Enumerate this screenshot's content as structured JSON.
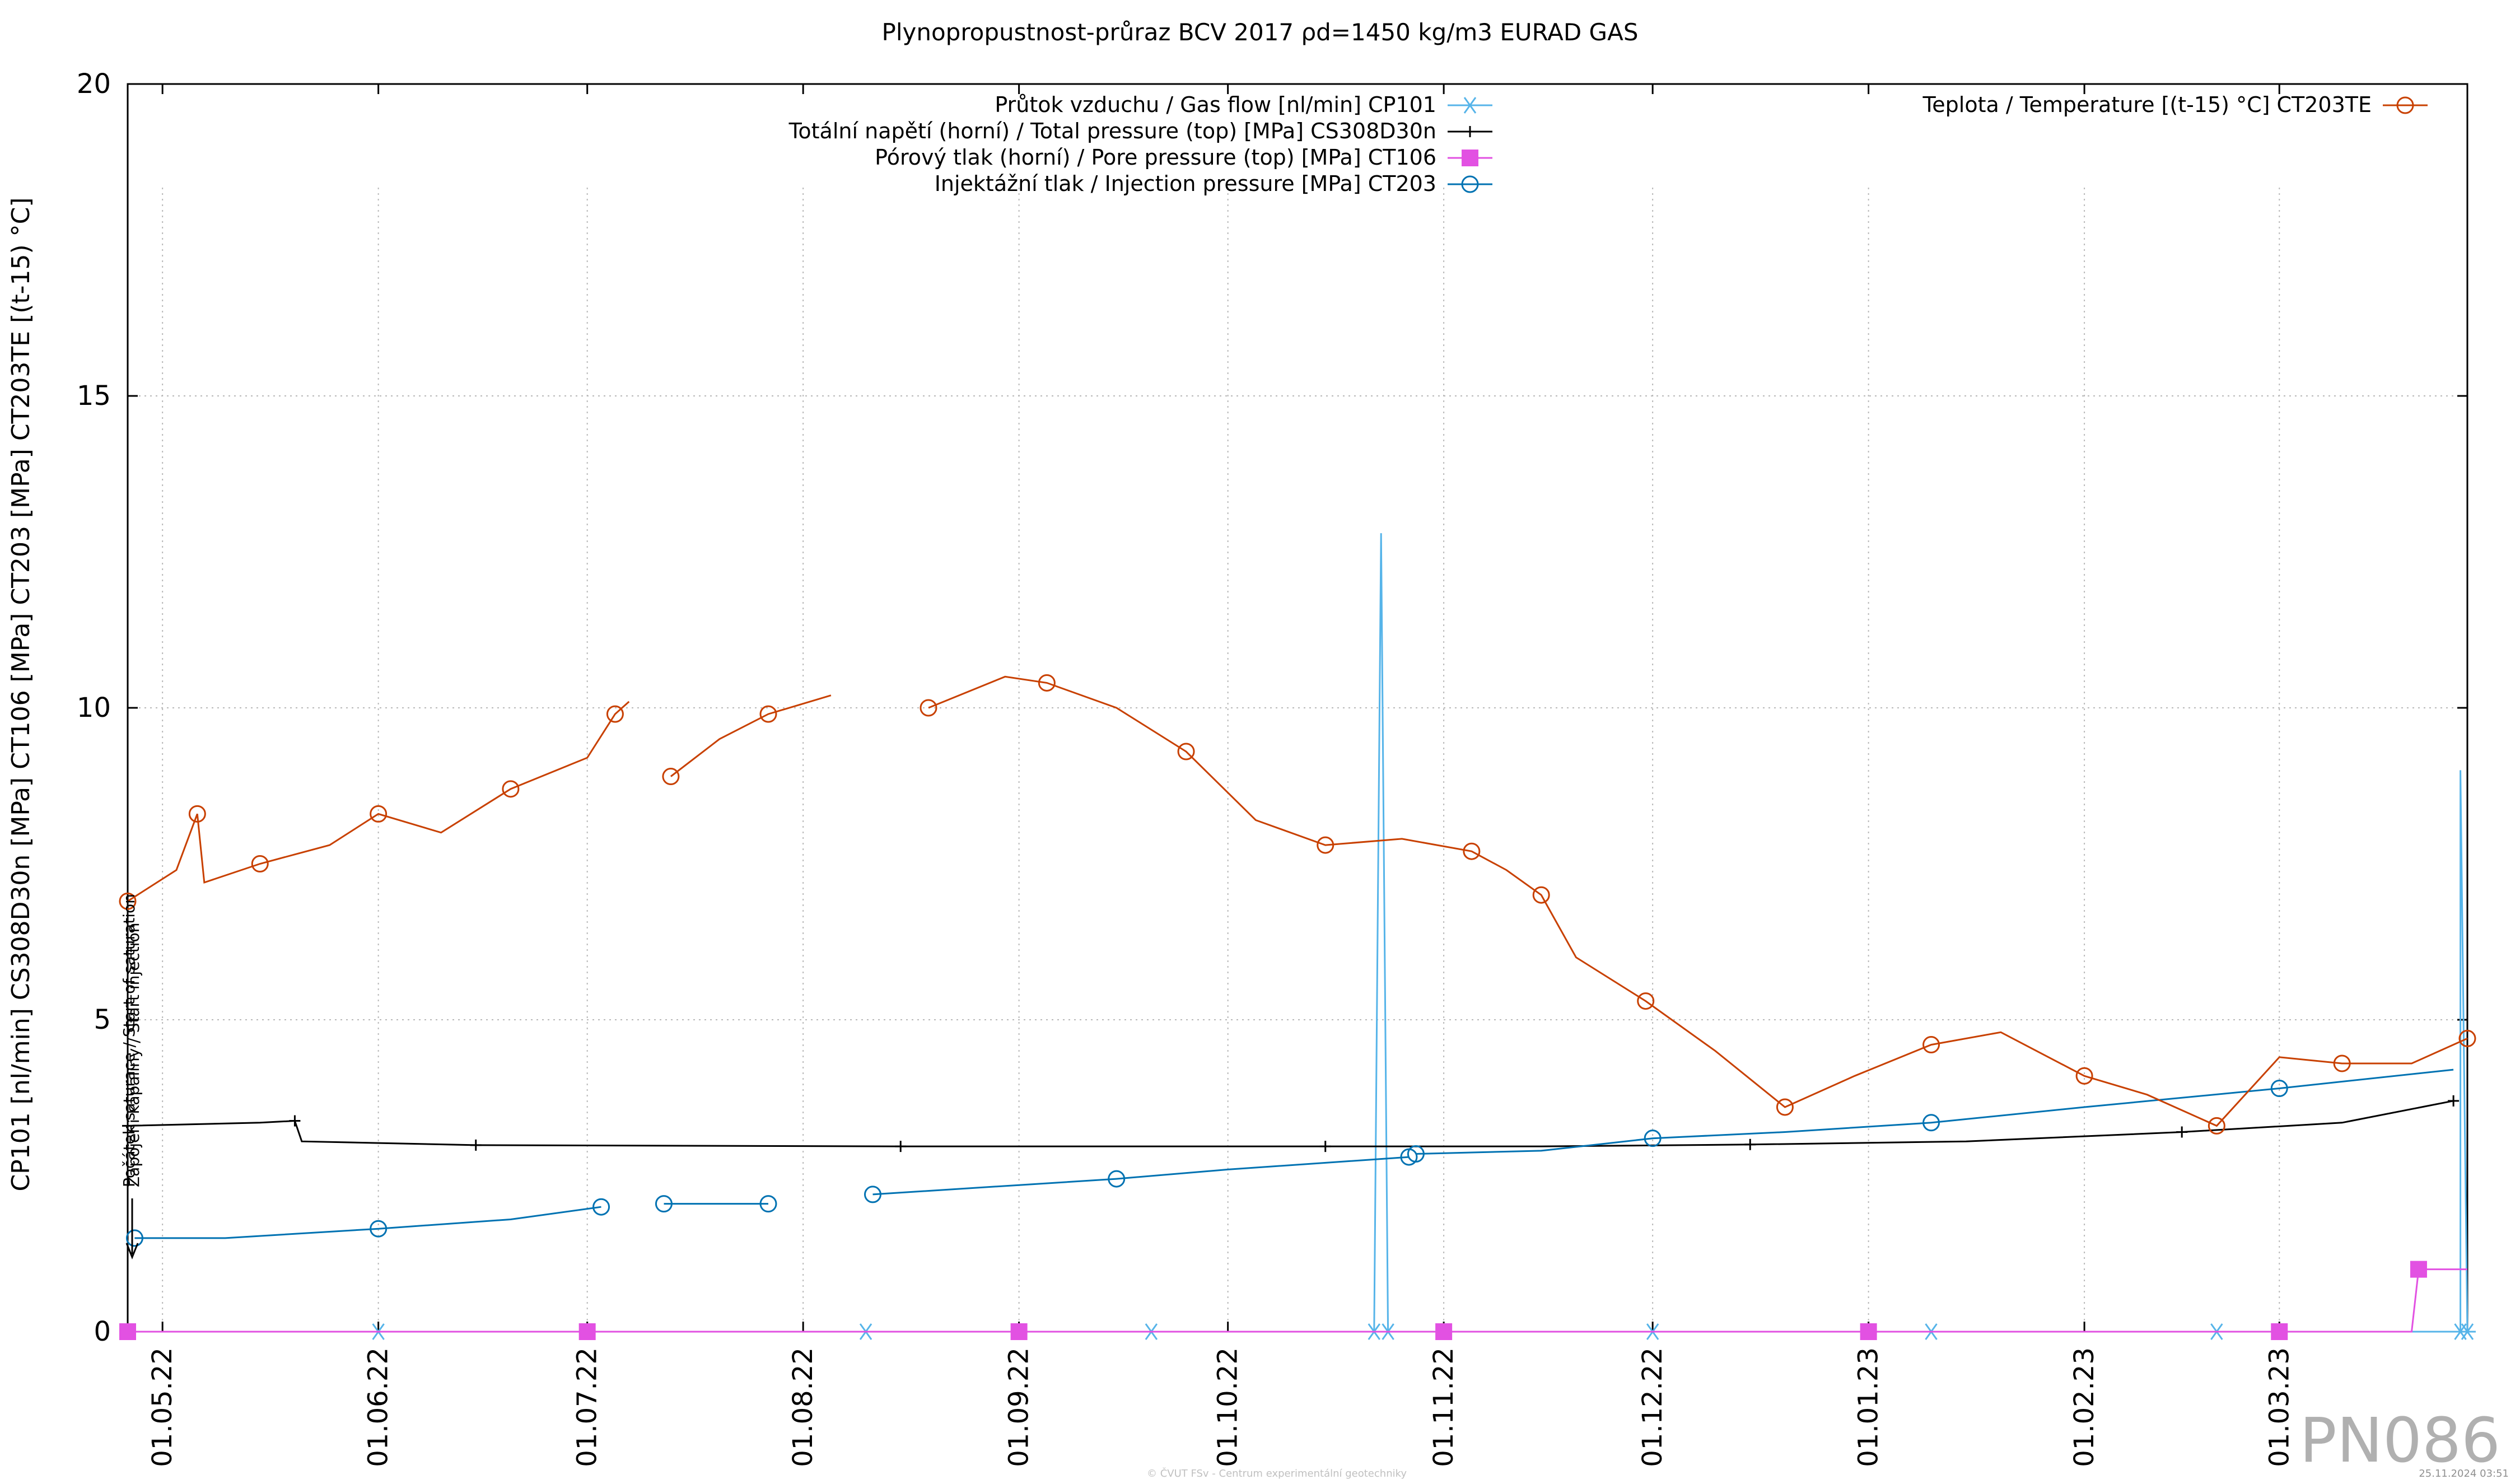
{
  "chart_data": {
    "type": "line",
    "title": "Plynopropustnost-průraz BCV 2017 ρd=1450 kg/m3 EURAD GAS",
    "ylabel": "CP101 [nl/min] CS308D30n [MPa] CT106 [MPa] CT203 [MPa] CT203TE [(t-15) °C]",
    "xlabel": "",
    "ylim": [
      0,
      20
    ],
    "yticks": [
      0,
      5,
      10,
      15,
      20
    ],
    "xlim": [
      "2022-04-26",
      "2023-03-28"
    ],
    "xticks": [
      "01.05.22",
      "01.06.22",
      "01.07.22",
      "01.08.22",
      "01.09.22",
      "01.10.22",
      "01.11.22",
      "01.12.22",
      "01.01.23",
      "01.02.23",
      "01.03.23"
    ],
    "grid": true,
    "watermark": "PN086",
    "footer_credit": "© ČVUT FSv - Centrum experimentální geotechniky",
    "footer_date": "25.11.2024 03:51",
    "annotations": [
      {
        "text": "Počátek saturace / Start of saturation",
        "date": "2022-04-26"
      },
      {
        "text": "Zapojení kapaliny / Start injection",
        "date": "2022-04-26"
      }
    ],
    "legend_position": "top",
    "series": [
      {
        "name": "Průtok vzduchu / Gas flow [nl/min] CP101",
        "color": "#56b4e9",
        "marker": "asterisk",
        "points": [
          [
            "2022-04-26",
            0.0
          ],
          [
            "2022-05-15",
            0.0
          ],
          [
            "2022-06-01",
            0.0
          ],
          [
            "2022-06-20",
            0.0
          ],
          [
            "2022-07-01",
            0.0
          ],
          [
            "2022-07-20",
            0.0
          ],
          [
            "2022-08-10",
            0.0
          ],
          [
            "2022-09-01",
            0.0
          ],
          [
            "2022-09-20",
            0.0
          ],
          [
            "2022-10-10",
            0.0
          ],
          [
            "2022-10-22",
            0.0
          ],
          [
            "2022-10-23",
            12.8
          ],
          [
            "2022-10-24",
            0.0
          ],
          [
            "2022-11-10",
            0.0
          ],
          [
            "2022-12-01",
            0.0
          ],
          [
            "2022-12-20",
            0.0
          ],
          [
            "2023-01-10",
            0.0
          ],
          [
            "2023-02-01",
            0.0
          ],
          [
            "2023-02-20",
            0.0
          ],
          [
            "2023-03-10",
            0.0
          ],
          [
            "2023-03-27",
            0.0
          ],
          [
            "2023-03-27",
            9.0
          ],
          [
            "2023-03-28",
            0.0
          ]
        ]
      },
      {
        "name": "Totální napětí (horní) / Total pressure (top) [MPa] CS308D30n",
        "color": "#000000",
        "marker": "plus",
        "points": [
          [
            "2022-04-26",
            3.3
          ],
          [
            "2022-05-15",
            3.35
          ],
          [
            "2022-05-20",
            3.38
          ],
          [
            "2022-05-21",
            3.05
          ],
          [
            "2022-06-15",
            2.99
          ],
          [
            "2022-07-15",
            2.98
          ],
          [
            "2022-08-15",
            2.97
          ],
          [
            "2022-09-15",
            2.97
          ],
          [
            "2022-10-15",
            2.97
          ],
          [
            "2022-11-15",
            2.97
          ],
          [
            "2022-12-15",
            3.0
          ],
          [
            "2023-01-15",
            3.05
          ],
          [
            "2023-02-15",
            3.2
          ],
          [
            "2023-03-10",
            3.35
          ],
          [
            "2023-03-26",
            3.7
          ]
        ]
      },
      {
        "name": "Pórový tlak (horní) / Pore pressure (top) [MPa] CT106",
        "color": "#e251e2",
        "marker": "square",
        "points": [
          [
            "2022-04-26",
            0.0
          ],
          [
            "2022-06-01",
            0.0
          ],
          [
            "2022-07-01",
            0.0
          ],
          [
            "2022-08-01",
            0.0
          ],
          [
            "2022-09-01",
            0.0
          ],
          [
            "2022-10-01",
            0.0
          ],
          [
            "2022-11-01",
            0.0
          ],
          [
            "2022-12-01",
            0.0
          ],
          [
            "2023-01-01",
            0.0
          ],
          [
            "2023-02-01",
            0.0
          ],
          [
            "2023-03-01",
            0.0
          ],
          [
            "2023-03-20",
            0.0
          ],
          [
            "2023-03-21",
            1.0
          ],
          [
            "2023-03-28",
            1.0
          ]
        ]
      },
      {
        "name": "Injektážní tlak / Injection pressure [MPa] CT203",
        "color": "#0072b2",
        "marker": "circle",
        "segments": [
          [
            [
              "2022-04-27",
              1.5
            ],
            [
              "2022-05-10",
              1.5
            ],
            [
              "2022-06-01",
              1.65
            ],
            [
              "2022-06-20",
              1.8
            ],
            [
              "2022-07-03",
              2.0
            ]
          ],
          [
            [
              "2022-07-12",
              2.05
            ],
            [
              "2022-07-27",
              2.05
            ]
          ],
          [
            [
              "2022-08-11",
              2.2
            ],
            [
              "2022-09-01",
              2.35
            ],
            [
              "2022-09-15",
              2.45
            ],
            [
              "2022-10-01",
              2.6
            ],
            [
              "2022-10-27",
              2.8
            ]
          ],
          [
            [
              "2022-10-28",
              2.85
            ],
            [
              "2022-11-15",
              2.9
            ],
            [
              "2022-12-01",
              3.1
            ],
            [
              "2022-12-20",
              3.2
            ],
            [
              "2023-01-10",
              3.35
            ],
            [
              "2023-02-01",
              3.6
            ],
            [
              "2023-03-01",
              3.9
            ],
            [
              "2023-03-26",
              4.2
            ]
          ]
        ]
      },
      {
        "name": "Teplota / Temperature [(t-15) °C] CT203TE",
        "color": "#c84000",
        "marker": "circle",
        "segments": [
          [
            [
              "2022-04-26",
              6.9
            ],
            [
              "2022-05-03",
              7.4
            ],
            [
              "2022-05-06",
              8.3
            ],
            [
              "2022-05-07",
              7.2
            ],
            [
              "2022-05-15",
              7.5
            ],
            [
              "2022-05-25",
              7.8
            ],
            [
              "2022-06-01",
              8.3
            ],
            [
              "2022-06-10",
              8.0
            ],
            [
              "2022-06-20",
              8.7
            ],
            [
              "2022-07-01",
              9.2
            ],
            [
              "2022-07-05",
              9.9
            ],
            [
              "2022-07-07",
              10.1
            ]
          ],
          [
            [
              "2022-07-13",
              8.9
            ],
            [
              "2022-07-20",
              9.5
            ],
            [
              "2022-07-27",
              9.9
            ],
            [
              "2022-08-05",
              10.2
            ]
          ],
          [
            [
              "2022-08-19",
              10.0
            ],
            [
              "2022-08-30",
              10.5
            ],
            [
              "2022-09-05",
              10.4
            ],
            [
              "2022-09-15",
              10.0
            ],
            [
              "2022-09-25",
              9.3
            ],
            [
              "2022-10-05",
              8.2
            ],
            [
              "2022-10-15",
              7.8
            ],
            [
              "2022-10-26",
              7.9
            ],
            [
              "2022-11-05",
              7.7
            ],
            [
              "2022-11-10",
              7.4
            ],
            [
              "2022-11-15",
              7.0
            ],
            [
              "2022-11-20",
              6.0
            ],
            [
              "2022-11-30",
              5.3
            ],
            [
              "2022-12-10",
              4.5
            ],
            [
              "2022-12-20",
              3.6
            ],
            [
              "2022-12-30",
              4.1
            ],
            [
              "2023-01-10",
              4.6
            ],
            [
              "2023-01-20",
              4.8
            ],
            [
              "2023-02-01",
              4.1
            ],
            [
              "2023-02-10",
              3.8
            ],
            [
              "2023-02-20",
              3.3
            ],
            [
              "2023-03-01",
              4.4
            ],
            [
              "2023-03-10",
              4.3
            ],
            [
              "2023-03-20",
              4.3
            ],
            [
              "2023-03-28",
              4.7
            ]
          ]
        ]
      }
    ]
  }
}
